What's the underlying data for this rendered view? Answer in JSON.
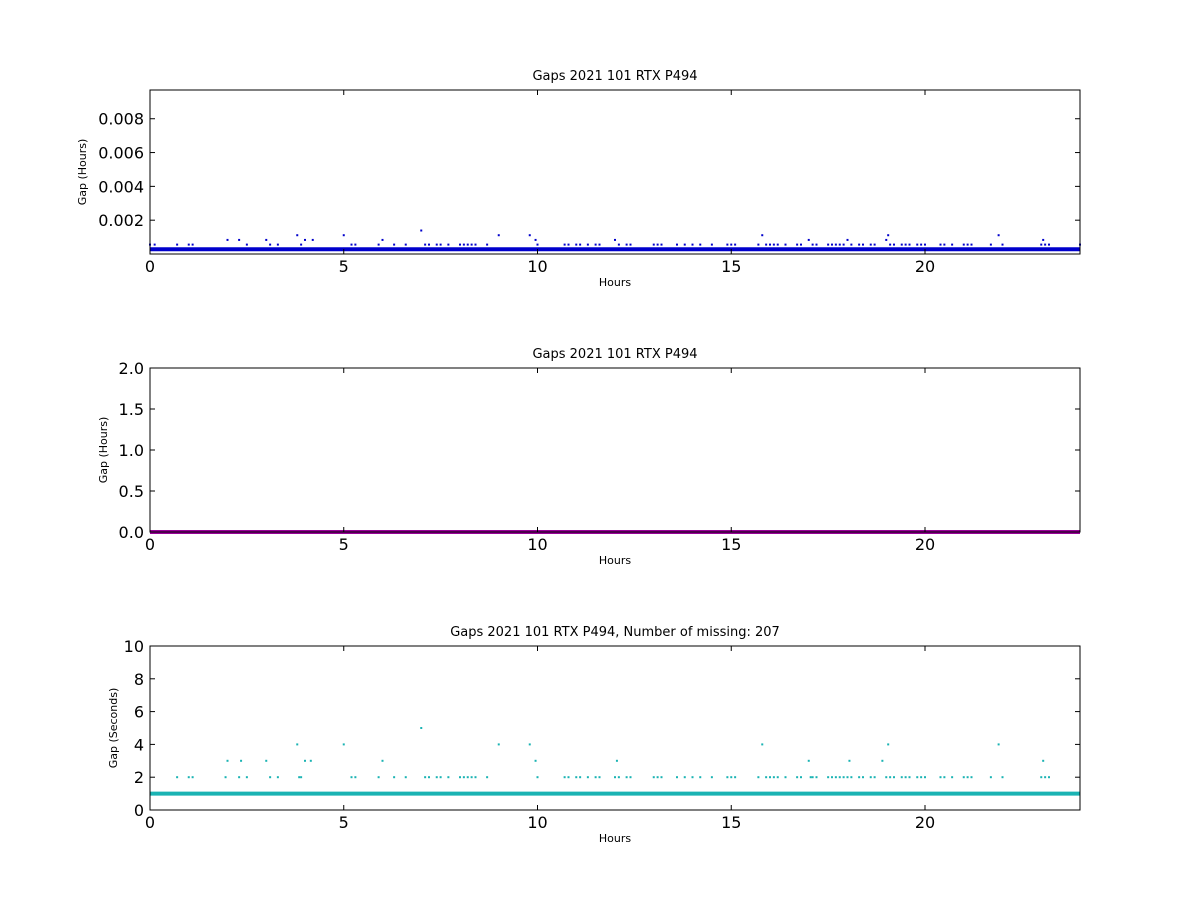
{
  "chart_data": [
    {
      "type": "scatter",
      "title": "Gaps 2021 101 RTX  P494",
      "xlabel": "Hours",
      "ylabel": "Gap (Hours)",
      "xlim": [
        0,
        24
      ],
      "ylim": [
        0,
        0.0097
      ],
      "xticks": [
        0,
        5,
        10,
        15,
        20
      ],
      "yticks": [
        0.002,
        0.004,
        0.006,
        0.008
      ],
      "ytick_labels": [
        "0.002",
        "0.004",
        "0.006",
        "0.008"
      ],
      "grid": false,
      "color": "#0000cc",
      "baseline": 0.000278,
      "series": [
        {
          "x": [
            0.0,
            0.12,
            0.7,
            1.0,
            1.1,
            2.0,
            2.3,
            2.5,
            3.0,
            3.1,
            3.3,
            3.8,
            3.9,
            4.0,
            4.2,
            5.0,
            5.2,
            5.3,
            5.9,
            6.0,
            6.3,
            6.6,
            7.0,
            7.1,
            7.2,
            7.4,
            7.5,
            7.7,
            8.0,
            8.1,
            8.2,
            8.3,
            8.4,
            8.7,
            9.0,
            9.8,
            9.95,
            10.0,
            10.7,
            10.8,
            11.0,
            11.1,
            11.3,
            11.5,
            11.6,
            12.0,
            12.1,
            12.3,
            12.4,
            13.0,
            13.1,
            13.2,
            13.6,
            13.8,
            14.0,
            14.2,
            14.5,
            14.9,
            15.0,
            15.1,
            15.7,
            15.8,
            15.9,
            16.0,
            16.1,
            16.2,
            16.4,
            16.7,
            16.8,
            17.0,
            17.1,
            17.2,
            17.5,
            17.6,
            17.7,
            17.8,
            17.9,
            18.0,
            18.1,
            18.3,
            18.4,
            18.6,
            18.7,
            19.0,
            19.05,
            19.1,
            19.2,
            19.4,
            19.5,
            19.6,
            19.8,
            19.9,
            20.0,
            20.4,
            20.5,
            20.7,
            21.0,
            21.1,
            21.2,
            21.7,
            21.9,
            22.0,
            23.0,
            23.05,
            23.1,
            23.2,
            24.0
          ],
          "y": [
            0.000556,
            0.000556,
            0.000556,
            0.000556,
            0.000556,
            0.000833,
            0.000833,
            0.000556,
            0.000833,
            0.000556,
            0.000556,
            0.001111,
            0.000556,
            0.000833,
            0.000833,
            0.001111,
            0.000556,
            0.000556,
            0.000556,
            0.000833,
            0.000556,
            0.000556,
            0.001389,
            0.000556,
            0.000556,
            0.000556,
            0.000556,
            0.000556,
            0.000556,
            0.000556,
            0.000556,
            0.000556,
            0.000556,
            0.000556,
            0.001111,
            0.001111,
            0.000833,
            0.000556,
            0.000556,
            0.000556,
            0.000556,
            0.000556,
            0.000556,
            0.000556,
            0.000556,
            0.000833,
            0.000556,
            0.000556,
            0.000556,
            0.000556,
            0.000556,
            0.000556,
            0.000556,
            0.000556,
            0.000556,
            0.000556,
            0.000556,
            0.000556,
            0.000556,
            0.000556,
            0.000556,
            0.001111,
            0.000556,
            0.000556,
            0.000556,
            0.000556,
            0.000556,
            0.000556,
            0.000556,
            0.000833,
            0.000556,
            0.000556,
            0.000556,
            0.000556,
            0.000556,
            0.000556,
            0.000556,
            0.000833,
            0.000556,
            0.000556,
            0.000556,
            0.000556,
            0.000556,
            0.000833,
            0.001111,
            0.000556,
            0.000556,
            0.000556,
            0.000556,
            0.000556,
            0.000556,
            0.000556,
            0.000556,
            0.000556,
            0.000556,
            0.000556,
            0.000556,
            0.000556,
            0.000556,
            0.000556,
            0.001111,
            0.000556,
            0.000556,
            0.000833,
            0.000556,
            0.000556,
            0.000556
          ]
        }
      ]
    },
    {
      "type": "scatter",
      "title": "Gaps 2021 101 RTX  P494",
      "xlabel": "Hours",
      "ylabel": "Gap (Hours)",
      "xlim": [
        0,
        24
      ],
      "ylim": [
        0,
        2.0
      ],
      "xticks": [
        0,
        5,
        10,
        15,
        20
      ],
      "yticks": [
        0.0,
        0.5,
        1.0,
        1.5,
        2.0
      ],
      "ytick_labels": [
        "0.0",
        "0.5",
        "1.0",
        "1.5",
        "2.0"
      ],
      "grid": false,
      "color": "#990099",
      "baseline": 0.0,
      "series": [
        {
          "x": [],
          "y": []
        }
      ]
    },
    {
      "type": "scatter",
      "title": "Gaps 2021 101 RTX  P494, Number of missing: 207",
      "xlabel": "Hours",
      "ylabel": "Gap (Seconds)",
      "xlim": [
        0,
        24
      ],
      "ylim": [
        0,
        10
      ],
      "xticks": [
        0,
        5,
        10,
        15,
        20
      ],
      "yticks": [
        0,
        2,
        4,
        6,
        8,
        10
      ],
      "ytick_labels": [
        "0",
        "2",
        "4",
        "6",
        "8",
        "10"
      ],
      "grid": false,
      "color": "#1ab3b3",
      "baseline": 1,
      "series": [
        {
          "x": [
            0.7,
            1.0,
            1.1,
            1.95,
            2.0,
            2.3,
            2.35,
            2.5,
            3.0,
            3.1,
            3.3,
            3.8,
            3.85,
            3.9,
            4.0,
            4.15,
            5.0,
            5.2,
            5.3,
            5.9,
            6.0,
            6.3,
            6.6,
            7.0,
            7.1,
            7.2,
            7.4,
            7.5,
            7.7,
            8.0,
            8.1,
            8.2,
            8.3,
            8.4,
            8.7,
            9.0,
            9.8,
            9.95,
            10.0,
            10.7,
            10.8,
            11.0,
            11.1,
            11.3,
            11.5,
            11.6,
            12.0,
            12.05,
            12.1,
            12.3,
            12.4,
            13.0,
            13.1,
            13.2,
            13.6,
            13.8,
            14.0,
            14.2,
            14.5,
            14.9,
            15.0,
            15.1,
            15.7,
            15.8,
            15.9,
            16.0,
            16.1,
            16.2,
            16.4,
            16.7,
            16.8,
            17.0,
            17.05,
            17.1,
            17.2,
            17.5,
            17.6,
            17.7,
            17.8,
            17.9,
            18.0,
            18.05,
            18.1,
            18.3,
            18.4,
            18.6,
            18.7,
            18.9,
            19.0,
            19.05,
            19.1,
            19.2,
            19.4,
            19.5,
            19.6,
            19.8,
            19.9,
            20.0,
            20.4,
            20.5,
            20.7,
            21.0,
            21.1,
            21.2,
            21.7,
            21.9,
            22.0,
            23.0,
            23.05,
            23.1,
            23.2
          ],
          "y": [
            2,
            2,
            2,
            2,
            3,
            2,
            3,
            2,
            3,
            2,
            2,
            4,
            2,
            2,
            3,
            3,
            4,
            2,
            2,
            2,
            3,
            2,
            2,
            5,
            2,
            2,
            2,
            2,
            2,
            2,
            2,
            2,
            2,
            2,
            2,
            4,
            4,
            3,
            2,
            2,
            2,
            2,
            2,
            2,
            2,
            2,
            2,
            3,
            2,
            2,
            2,
            2,
            2,
            2,
            2,
            2,
            2,
            2,
            2,
            2,
            2,
            2,
            2,
            4,
            2,
            2,
            2,
            2,
            2,
            2,
            2,
            3,
            2,
            2,
            2,
            2,
            2,
            2,
            2,
            2,
            2,
            3,
            2,
            2,
            2,
            2,
            2,
            3,
            2,
            4,
            2,
            2,
            2,
            2,
            2,
            2,
            2,
            2,
            2,
            2,
            2,
            2,
            2,
            2,
            2,
            4,
            2,
            2,
            3,
            2,
            2
          ]
        }
      ]
    }
  ]
}
